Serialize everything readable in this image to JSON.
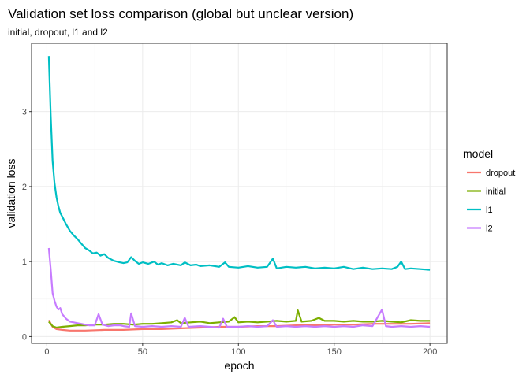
{
  "chart_data": {
    "type": "line",
    "title": "Validation set loss comparison (global but unclear version)",
    "subtitle": "initial, dropout, l1 and l2",
    "xlabel": "epoch",
    "ylabel": "validation loss",
    "xlim": [
      -8,
      209
    ],
    "ylim": [
      -0.09,
      3.91
    ],
    "x_ticks": [
      0,
      50,
      100,
      150,
      200
    ],
    "y_ticks": [
      0,
      1,
      2,
      3
    ],
    "grid": true,
    "legend": {
      "title": "model",
      "placement": "right"
    },
    "series": [
      {
        "name": "dropout",
        "color": "#F8766D",
        "points": [
          [
            1,
            0.22
          ],
          [
            3,
            0.13
          ],
          [
            5,
            0.1
          ],
          [
            8,
            0.09
          ],
          [
            12,
            0.08
          ],
          [
            20,
            0.08
          ],
          [
            30,
            0.09
          ],
          [
            40,
            0.09
          ],
          [
            50,
            0.1
          ],
          [
            60,
            0.1
          ],
          [
            70,
            0.11
          ],
          [
            80,
            0.12
          ],
          [
            90,
            0.13
          ],
          [
            100,
            0.13
          ],
          [
            110,
            0.14
          ],
          [
            120,
            0.14
          ],
          [
            130,
            0.15
          ],
          [
            140,
            0.15
          ],
          [
            150,
            0.16
          ],
          [
            160,
            0.16
          ],
          [
            170,
            0.17
          ],
          [
            180,
            0.17
          ],
          [
            190,
            0.17
          ],
          [
            200,
            0.18
          ]
        ]
      },
      {
        "name": "initial",
        "color": "#7CAE00",
        "points": [
          [
            1,
            0.2
          ],
          [
            3,
            0.14
          ],
          [
            5,
            0.12
          ],
          [
            8,
            0.13
          ],
          [
            12,
            0.14
          ],
          [
            16,
            0.15
          ],
          [
            20,
            0.15
          ],
          [
            25,
            0.16
          ],
          [
            30,
            0.16
          ],
          [
            35,
            0.17
          ],
          [
            40,
            0.17
          ],
          [
            45,
            0.16
          ],
          [
            50,
            0.17
          ],
          [
            55,
            0.17
          ],
          [
            60,
            0.18
          ],
          [
            65,
            0.19
          ],
          [
            68,
            0.22
          ],
          [
            70,
            0.18
          ],
          [
            75,
            0.19
          ],
          [
            80,
            0.2
          ],
          [
            85,
            0.18
          ],
          [
            90,
            0.19
          ],
          [
            95,
            0.2
          ],
          [
            98,
            0.26
          ],
          [
            100,
            0.19
          ],
          [
            105,
            0.2
          ],
          [
            110,
            0.19
          ],
          [
            115,
            0.2
          ],
          [
            120,
            0.21
          ],
          [
            125,
            0.2
          ],
          [
            130,
            0.21
          ],
          [
            131,
            0.35
          ],
          [
            133,
            0.2
          ],
          [
            138,
            0.21
          ],
          [
            142,
            0.25
          ],
          [
            145,
            0.21
          ],
          [
            150,
            0.21
          ],
          [
            155,
            0.2
          ],
          [
            160,
            0.21
          ],
          [
            165,
            0.2
          ],
          [
            170,
            0.2
          ],
          [
            175,
            0.21
          ],
          [
            180,
            0.2
          ],
          [
            185,
            0.19
          ],
          [
            190,
            0.22
          ],
          [
            195,
            0.21
          ],
          [
            200,
            0.21
          ]
        ]
      },
      {
        "name": "l1",
        "color": "#00BFC4",
        "points": [
          [
            1,
            3.74
          ],
          [
            2,
            2.95
          ],
          [
            3,
            2.34
          ],
          [
            4,
            2.05
          ],
          [
            5,
            1.86
          ],
          [
            6,
            1.74
          ],
          [
            7,
            1.65
          ],
          [
            8,
            1.6
          ],
          [
            10,
            1.5
          ],
          [
            12,
            1.41
          ],
          [
            14,
            1.35
          ],
          [
            16,
            1.3
          ],
          [
            18,
            1.24
          ],
          [
            20,
            1.18
          ],
          [
            22,
            1.15
          ],
          [
            24,
            1.11
          ],
          [
            26,
            1.12
          ],
          [
            28,
            1.08
          ],
          [
            30,
            1.1
          ],
          [
            32,
            1.05
          ],
          [
            35,
            1.01
          ],
          [
            38,
            0.99
          ],
          [
            40,
            0.98
          ],
          [
            42,
            0.99
          ],
          [
            44,
            1.06
          ],
          [
            46,
            1.01
          ],
          [
            48,
            0.97
          ],
          [
            50,
            0.99
          ],
          [
            53,
            0.97
          ],
          [
            56,
            1.0
          ],
          [
            58,
            0.96
          ],
          [
            60,
            0.98
          ],
          [
            63,
            0.95
          ],
          [
            66,
            0.97
          ],
          [
            70,
            0.95
          ],
          [
            72,
            0.99
          ],
          [
            75,
            0.95
          ],
          [
            78,
            0.96
          ],
          [
            80,
            0.94
          ],
          [
            85,
            0.95
          ],
          [
            90,
            0.93
          ],
          [
            93,
            0.99
          ],
          [
            95,
            0.93
          ],
          [
            100,
            0.92
          ],
          [
            105,
            0.94
          ],
          [
            110,
            0.92
          ],
          [
            115,
            0.93
          ],
          [
            118,
            1.04
          ],
          [
            120,
            0.91
          ],
          [
            125,
            0.93
          ],
          [
            130,
            0.92
          ],
          [
            135,
            0.93
          ],
          [
            140,
            0.91
          ],
          [
            145,
            0.92
          ],
          [
            150,
            0.91
          ],
          [
            155,
            0.93
          ],
          [
            160,
            0.9
          ],
          [
            165,
            0.92
          ],
          [
            170,
            0.9
          ],
          [
            175,
            0.91
          ],
          [
            180,
            0.9
          ],
          [
            183,
            0.93
          ],
          [
            185,
            1.0
          ],
          [
            187,
            0.9
          ],
          [
            190,
            0.91
          ],
          [
            195,
            0.9
          ],
          [
            200,
            0.89
          ]
        ]
      },
      {
        "name": "l2",
        "color": "#C77CFF",
        "points": [
          [
            1,
            1.18
          ],
          [
            2,
            0.9
          ],
          [
            3,
            0.58
          ],
          [
            4,
            0.48
          ],
          [
            5,
            0.4
          ],
          [
            6,
            0.36
          ],
          [
            7,
            0.38
          ],
          [
            8,
            0.3
          ],
          [
            10,
            0.24
          ],
          [
            12,
            0.2
          ],
          [
            14,
            0.19
          ],
          [
            16,
            0.18
          ],
          [
            18,
            0.17
          ],
          [
            20,
            0.16
          ],
          [
            22,
            0.15
          ],
          [
            25,
            0.15
          ],
          [
            27,
            0.3
          ],
          [
            29,
            0.16
          ],
          [
            32,
            0.14
          ],
          [
            35,
            0.15
          ],
          [
            38,
            0.15
          ],
          [
            40,
            0.14
          ],
          [
            43,
            0.13
          ],
          [
            44,
            0.31
          ],
          [
            46,
            0.14
          ],
          [
            50,
            0.13
          ],
          [
            55,
            0.14
          ],
          [
            60,
            0.13
          ],
          [
            65,
            0.14
          ],
          [
            70,
            0.13
          ],
          [
            72,
            0.25
          ],
          [
            74,
            0.13
          ],
          [
            80,
            0.14
          ],
          [
            85,
            0.13
          ],
          [
            90,
            0.12
          ],
          [
            92,
            0.24
          ],
          [
            94,
            0.13
          ],
          [
            100,
            0.13
          ],
          [
            105,
            0.14
          ],
          [
            110,
            0.13
          ],
          [
            115,
            0.14
          ],
          [
            118,
            0.22
          ],
          [
            120,
            0.13
          ],
          [
            125,
            0.14
          ],
          [
            130,
            0.13
          ],
          [
            135,
            0.14
          ],
          [
            140,
            0.13
          ],
          [
            145,
            0.14
          ],
          [
            150,
            0.13
          ],
          [
            155,
            0.14
          ],
          [
            160,
            0.13
          ],
          [
            165,
            0.15
          ],
          [
            170,
            0.14
          ],
          [
            175,
            0.36
          ],
          [
            177,
            0.14
          ],
          [
            180,
            0.13
          ],
          [
            185,
            0.14
          ],
          [
            190,
            0.13
          ],
          [
            195,
            0.14
          ],
          [
            200,
            0.13
          ]
        ]
      }
    ]
  }
}
